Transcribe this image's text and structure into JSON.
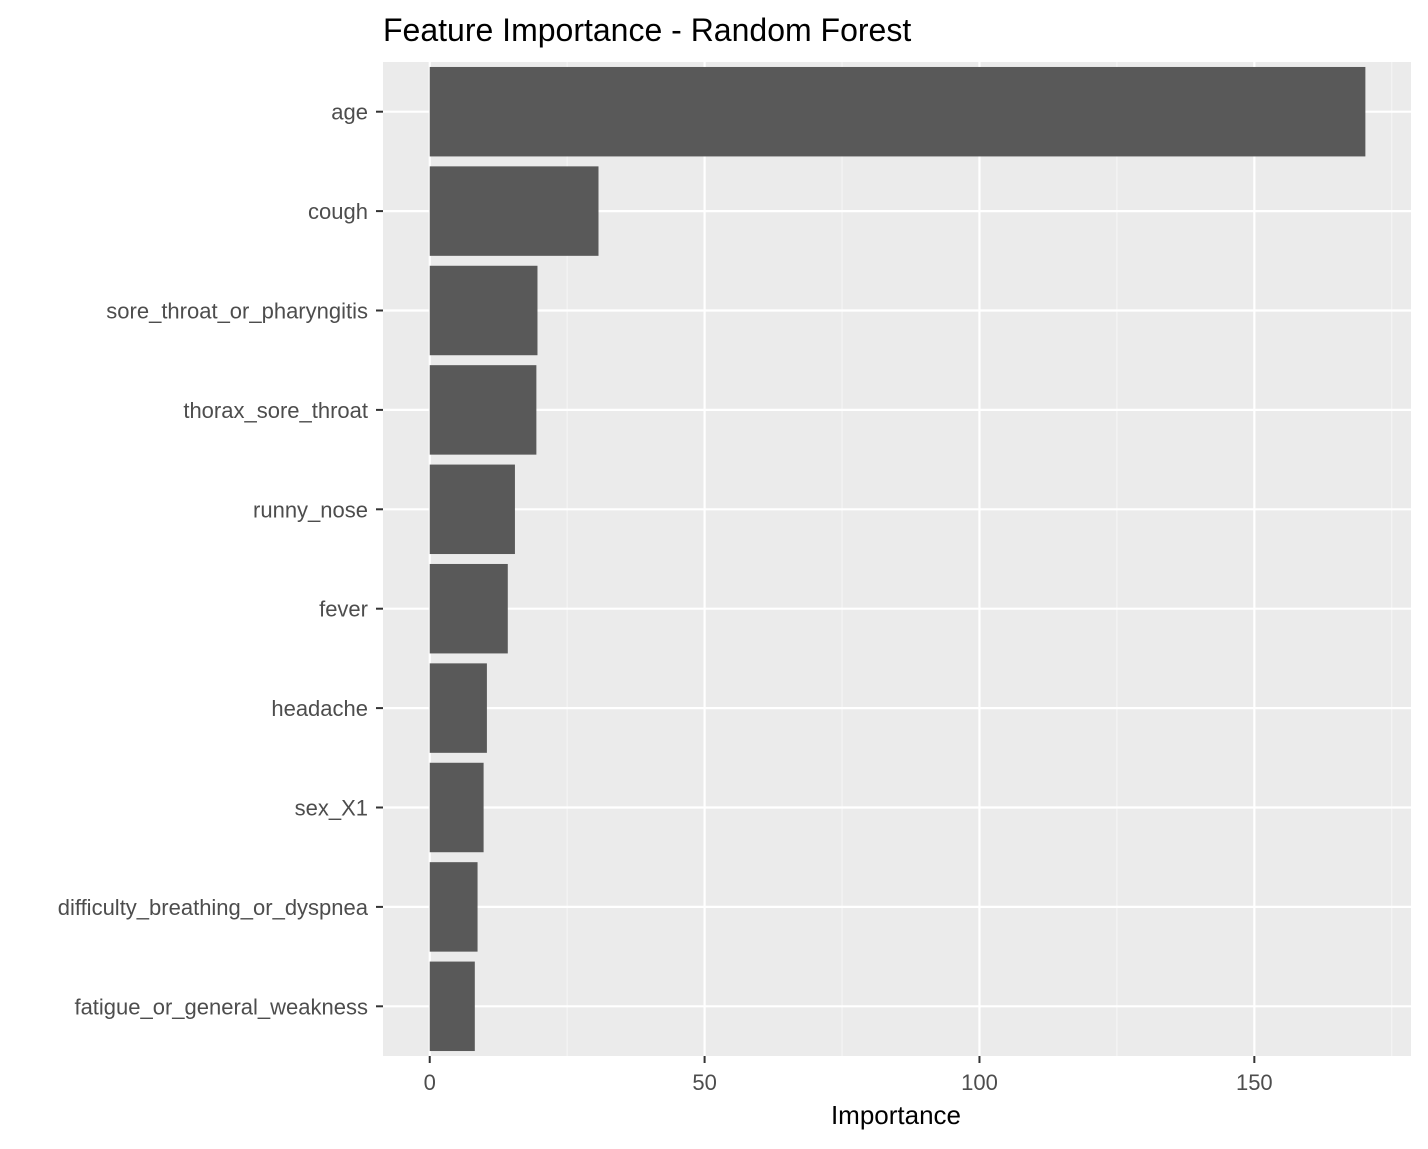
{
  "chart_data": {
    "type": "bar",
    "orientation": "horizontal",
    "title": "Feature Importance - Random Forest",
    "xlabel": "Importance",
    "ylabel": "",
    "xlim": [
      -8.5,
      178.5
    ],
    "x_ticks": [
      0,
      50,
      100,
      150
    ],
    "x_tick_labels": [
      "0",
      "50",
      "100",
      "150"
    ],
    "categories": [
      "age",
      "cough",
      "sore_throat_or_pharyngitis",
      "thorax_sore_throat",
      "runny_nose",
      "fever",
      "headache",
      "sex_X1",
      "difficulty_breathing_or_dyspnea",
      "fatigue_or_general_weakness"
    ],
    "values": [
      170.2,
      30.7,
      19.6,
      19.4,
      15.5,
      14.2,
      10.4,
      9.8,
      8.7,
      8.2
    ],
    "grid": true,
    "legend": "none",
    "colors": {
      "bar": "#595959",
      "panel_background": "#EBEBEB",
      "grid_major": "#FFFFFF",
      "grid_minor": "#F5F5F5",
      "axis_text": "#4D4D4D",
      "tick": "#333333",
      "title": "#000000"
    }
  }
}
